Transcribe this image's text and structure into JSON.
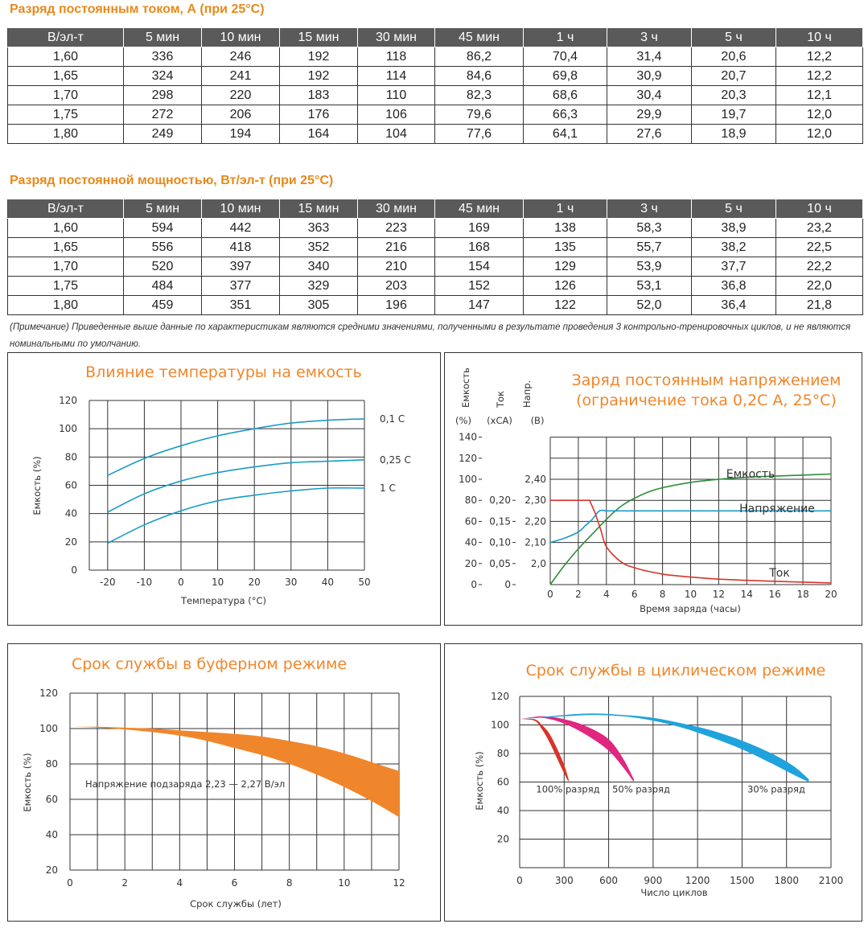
{
  "table1": {
    "title": "Разряд постоянным током, А (при 25°С)",
    "headers": [
      "В/эл-т",
      "5 мин",
      "10 мин",
      "15 мин",
      "30 мин",
      "45 мин",
      "1 ч",
      "3 ч",
      "5 ч",
      "10 ч"
    ],
    "rows": [
      [
        "1,60",
        "336",
        "246",
        "192",
        "118",
        "86,2",
        "70,4",
        "31,4",
        "20,6",
        "12,2"
      ],
      [
        "1,65",
        "324",
        "241",
        "192",
        "114",
        "84,6",
        "69,8",
        "30,9",
        "20,7",
        "12,2"
      ],
      [
        "1,70",
        "298",
        "220",
        "183",
        "110",
        "82,3",
        "68,6",
        "30,4",
        "20,3",
        "12,1"
      ],
      [
        "1,75",
        "272",
        "206",
        "176",
        "106",
        "79,6",
        "66,3",
        "29,9",
        "19,7",
        "12,0"
      ],
      [
        "1,80",
        "249",
        "194",
        "164",
        "104",
        "77,6",
        "64,1",
        "27,6",
        "18,9",
        "12,0"
      ]
    ]
  },
  "table2": {
    "title": "Разряд постоянной мощностью, Вт/эл-т (при 25°С)",
    "headers": [
      "В/эл-т",
      "5 мин",
      "10 мин",
      "15 мин",
      "30 мин",
      "45 мин",
      "1 ч",
      "3 ч",
      "5 ч",
      "10 ч"
    ],
    "rows": [
      [
        "1,60",
        "594",
        "442",
        "363",
        "223",
        "169",
        "138",
        "58,3",
        "38,9",
        "23,2"
      ],
      [
        "1,65",
        "556",
        "418",
        "352",
        "216",
        "168",
        "135",
        "55,7",
        "38,2",
        "22,5"
      ],
      [
        "1,70",
        "520",
        "397",
        "340",
        "210",
        "154",
        "129",
        "53,9",
        "37,7",
        "22,2"
      ],
      [
        "1,75",
        "484",
        "377",
        "329",
        "203",
        "152",
        "126",
        "53,1",
        "36,8",
        "22,0"
      ],
      [
        "1,80",
        "459",
        "351",
        "305",
        "196",
        "147",
        "122",
        "52,0",
        "36,4",
        "21,8"
      ]
    ]
  },
  "note": "(Примечание) Приведенные выше данные по характеристикам являются средними значениями, полученными в результате проведения 3 контрольно-тренировочных циклов, и не являются номинальными по умолчанию.",
  "colors": {
    "accent": "#f0862b",
    "header_bg": "#5a5a5a",
    "blue": "#1a9bc7",
    "green": "#2e8b3a",
    "red": "#d9332b",
    "orange": "#f0862b",
    "magenta": "#e0267f",
    "cyan": "#1fa3dc"
  },
  "chart_data": [
    {
      "type": "line",
      "title": "Влияние температуры на емкость",
      "xlabel": "Температура (°С)",
      "ylabel": "Емкость (%)",
      "x": [
        -20,
        -10,
        0,
        10,
        20,
        30,
        40,
        50
      ],
      "xlim": [
        -25,
        50
      ],
      "ylim": [
        0,
        120
      ],
      "xticks": [
        "-20",
        "-10",
        "0",
        "10",
        "20",
        "30",
        "40",
        "50"
      ],
      "yticks": [
        "0",
        "20",
        "40",
        "60",
        "80",
        "100",
        "120"
      ],
      "grid": true,
      "series": [
        {
          "name": "0,1 С",
          "values": [
            67,
            79,
            88,
            95,
            100,
            104,
            106,
            107
          ]
        },
        {
          "name": "0,25 С",
          "values": [
            41,
            54,
            63,
            69,
            73,
            76,
            77,
            78
          ]
        },
        {
          "name": "1 С",
          "values": [
            19,
            32,
            42,
            49,
            53,
            56,
            58,
            58
          ]
        }
      ]
    },
    {
      "type": "line",
      "title": "Заряд постоянным напряжением",
      "subtitle": "(ограничение тока 0,2С А, 25°С)",
      "xlabel": "Время заряда (часы)",
      "axis_headers": [
        "Емкость",
        "Ток",
        "Напр."
      ],
      "axis_units": [
        "(%)",
        "(хСА)",
        "(В)"
      ],
      "xlim": [
        0,
        20
      ],
      "xticks": [
        "0",
        "2",
        "4",
        "6",
        "8",
        "10",
        "12",
        "14",
        "16",
        "18",
        "20"
      ],
      "y_capacity_ticks": [
        "0",
        "20",
        "40",
        "60",
        "80",
        "100",
        "120",
        "140"
      ],
      "y_current_ticks": [
        "0",
        "0,05",
        "0,10",
        "0,15",
        "0,20"
      ],
      "y_voltage_ticks": [
        "2,0",
        "2,10",
        "2,20",
        "2,30",
        "2,40"
      ],
      "grid": true,
      "series": [
        {
          "name": "Емкость",
          "axis": "capacity",
          "x": [
            0,
            1,
            2,
            3,
            4,
            5,
            6,
            7,
            8,
            10,
            12,
            14,
            16,
            18,
            20
          ],
          "values": [
            0,
            18,
            34,
            48,
            62,
            74,
            82,
            88,
            92,
            97,
            100,
            102,
            103,
            104,
            105
          ]
        },
        {
          "name": "Напряжение",
          "axis": "voltage",
          "x": [
            0,
            1,
            2,
            2.5,
            3,
            3.5,
            4,
            6,
            10,
            15,
            20
          ],
          "values": [
            2.1,
            2.12,
            2.15,
            2.18,
            2.21,
            2.25,
            2.25,
            2.25,
            2.25,
            2.25,
            2.25
          ]
        },
        {
          "name": "Ток",
          "axis": "current",
          "x": [
            0,
            2.8,
            3.2,
            3.6,
            4,
            5,
            6,
            8,
            10,
            12,
            15,
            20
          ],
          "values": [
            0.2,
            0.2,
            0.17,
            0.13,
            0.09,
            0.055,
            0.04,
            0.025,
            0.018,
            0.013,
            0.009,
            0.004
          ]
        }
      ]
    },
    {
      "type": "area",
      "title": "Срок службы в буферном режиме",
      "xlabel": "Срок службы (лет)",
      "ylabel": "Емкость (%)",
      "annotation": "Напряжение подзаряда 2,23 — 2,27 В/эл",
      "xlim": [
        0,
        12
      ],
      "ylim": [
        20,
        120
      ],
      "xticks": [
        "0",
        "2",
        "4",
        "6",
        "8",
        "10",
        "12"
      ],
      "yticks": [
        "20",
        "40",
        "60",
        "80",
        "100",
        "120"
      ],
      "grid": true,
      "x": [
        0,
        1,
        2,
        3,
        4,
        5,
        6,
        7,
        8,
        9,
        10,
        11,
        12
      ],
      "upper": [
        101,
        101,
        100.5,
        100,
        99,
        98,
        97,
        95.5,
        93,
        90,
        86,
        81,
        76
      ],
      "lower": [
        101,
        100.5,
        99.5,
        98,
        96,
        93,
        89,
        85,
        80,
        74,
        67,
        59,
        50
      ]
    },
    {
      "type": "line",
      "title": "Срок службы в циклическом режиме",
      "xlabel": "Число циклов",
      "ylabel": "Емкость (%)",
      "xlim": [
        0,
        2100
      ],
      "ylim": [
        0,
        120
      ],
      "xticks": [
        "0",
        "300",
        "600",
        "900",
        "1200",
        "1500",
        "1800",
        "2100"
      ],
      "yticks": [
        "20",
        "40",
        "60",
        "80",
        "100",
        "120"
      ],
      "grid": true,
      "series": [
        {
          "name": "100% разряд",
          "x": [
            0,
            100,
            150,
            200,
            250,
            300,
            330
          ],
          "upper": [
            104,
            104,
            100,
            94,
            84,
            72,
            62
          ],
          "lower": [
            104,
            103,
            97,
            88,
            77,
            66,
            60
          ]
        },
        {
          "name": "50% разряд",
          "x": [
            0,
            150,
            300,
            450,
            600,
            700,
            770
          ],
          "upper": [
            104,
            106,
            104,
            99,
            90,
            76,
            62
          ],
          "lower": [
            104,
            105,
            101,
            93,
            82,
            70,
            60
          ]
        },
        {
          "name": "30% разряд",
          "x": [
            0,
            300,
            500,
            700,
            900,
            1100,
            1300,
            1500,
            1700,
            1850,
            1950
          ],
          "upper": [
            104,
            107,
            108,
            107,
            105,
            101,
            96,
            89,
            80,
            71,
            62
          ],
          "lower": [
            104,
            106,
            107,
            106,
            103,
            98,
            91,
            83,
            73,
            65,
            60
          ]
        }
      ]
    }
  ]
}
